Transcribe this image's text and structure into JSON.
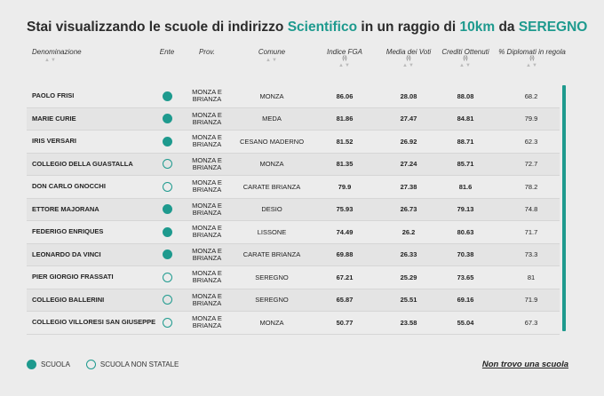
{
  "title": {
    "prefix": "Stai visualizzando le scuole di indirizzo ",
    "indirizzo": "Scientifico",
    "middle": " in un raggio di ",
    "radius": "10km",
    "da": " da ",
    "city": "SEREGNO"
  },
  "colors": {
    "accent": "#1e9a8e"
  },
  "columns": {
    "denominazione": "Denominazione",
    "ente": "Ente",
    "prov": "Prov.",
    "comune": "Comune",
    "indice_fga": "Indice FGA",
    "media_voti": "Media dei Voti",
    "crediti": "Crediti Ottenuti",
    "diplomati": "% Diplomati in regola",
    "info_marker": "(i)",
    "sort_marker": "▲▼"
  },
  "rows": [
    {
      "name": "PAOLO FRISI",
      "ente": "statale",
      "prov": "MONZA E BRIANZA",
      "comune": "MONZA",
      "fga": "86.06",
      "media": "28.08",
      "crediti": "88.08",
      "diplomati": "68.2"
    },
    {
      "name": "MARIE CURIE",
      "ente": "statale",
      "prov": "MONZA E BRIANZA",
      "comune": "MEDA",
      "fga": "81.86",
      "media": "27.47",
      "crediti": "84.81",
      "diplomati": "79.9"
    },
    {
      "name": "IRIS VERSARI",
      "ente": "statale",
      "prov": "MONZA E BRIANZA",
      "comune": "CESANO MADERNO",
      "fga": "81.52",
      "media": "26.92",
      "crediti": "88.71",
      "diplomati": "62.3"
    },
    {
      "name": "COLLEGIO DELLA GUASTALLA",
      "ente": "non_statale",
      "prov": "MONZA E BRIANZA",
      "comune": "MONZA",
      "fga": "81.35",
      "media": "27.24",
      "crediti": "85.71",
      "diplomati": "72.7"
    },
    {
      "name": "DON CARLO GNOCCHI",
      "ente": "non_statale",
      "prov": "MONZA E BRIANZA",
      "comune": "CARATE BRIANZA",
      "fga": "79.9",
      "media": "27.38",
      "crediti": "81.6",
      "diplomati": "78.2"
    },
    {
      "name": "ETTORE MAJORANA",
      "ente": "statale",
      "prov": "MONZA E BRIANZA",
      "comune": "DESIO",
      "fga": "75.93",
      "media": "26.73",
      "crediti": "79.13",
      "diplomati": "74.8"
    },
    {
      "name": "FEDERIGO ENRIQUES",
      "ente": "statale",
      "prov": "MONZA E BRIANZA",
      "comune": "LISSONE",
      "fga": "74.49",
      "media": "26.2",
      "crediti": "80.63",
      "diplomati": "71.7"
    },
    {
      "name": "LEONARDO DA VINCI",
      "ente": "statale",
      "prov": "MONZA E BRIANZA",
      "comune": "CARATE BRIANZA",
      "fga": "69.88",
      "media": "26.33",
      "crediti": "70.38",
      "diplomati": "73.3"
    },
    {
      "name": "PIER GIORGIO FRASSATI",
      "ente": "non_statale",
      "prov": "MONZA E BRIANZA",
      "comune": "SEREGNO",
      "fga": "67.21",
      "media": "25.29",
      "crediti": "73.65",
      "diplomati": "81"
    },
    {
      "name": "COLLEGIO BALLERINI",
      "ente": "non_statale",
      "prov": "MONZA E BRIANZA",
      "comune": "SEREGNO",
      "fga": "65.87",
      "media": "25.51",
      "crediti": "69.16",
      "diplomati": "71.9"
    },
    {
      "name": "COLLEGIO VILLORESI SAN GIUSEPPE",
      "ente": "non_statale",
      "prov": "MONZA E BRIANZA",
      "comune": "MONZA",
      "fga": "50.77",
      "media": "23.58",
      "crediti": "55.04",
      "diplomati": "67.3"
    }
  ],
  "legend": {
    "statale": "SCUOLA",
    "non_statale": "SCUOLA NON STATALE"
  },
  "not_found_link": "Non trovo una scuola"
}
